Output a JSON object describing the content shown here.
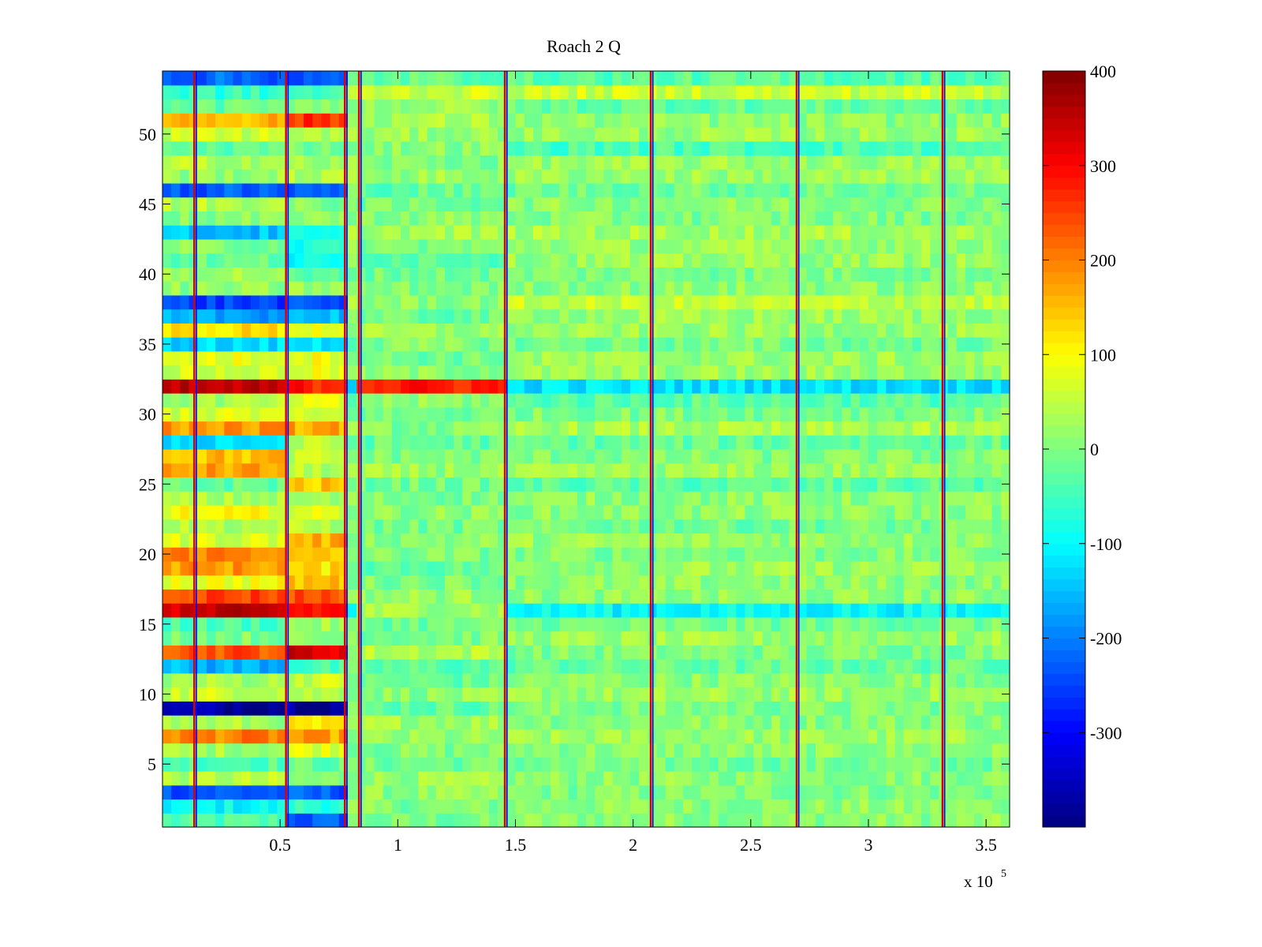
{
  "chart_data": {
    "type": "heatmap",
    "title": "Roach 2 Q",
    "xlabel": "",
    "ylabel": "",
    "x_exponent_label": {
      "base": "x 10",
      "exp": "5"
    },
    "xlim": [
      0,
      360000
    ],
    "ylim": [
      0.5,
      54.5
    ],
    "clim": [
      -400,
      400
    ],
    "colormap": "jet",
    "grid": false,
    "n_rows": 54,
    "xticks": [
      50000,
      100000,
      150000,
      200000,
      250000,
      300000,
      350000
    ],
    "xtick_labels": [
      "0.5",
      "1",
      "1.5",
      "2",
      "2.5",
      "3",
      "3.5"
    ],
    "yticks": [
      5,
      10,
      15,
      20,
      25,
      30,
      35,
      40,
      45,
      50
    ],
    "ytick_labels": [
      "5",
      "10",
      "15",
      "20",
      "25",
      "30",
      "35",
      "40",
      "45",
      "50"
    ],
    "colorbar_ticks": [
      -300,
      -200,
      -100,
      0,
      100,
      200,
      300,
      400
    ],
    "colorbar_labels": [
      "-300",
      "-200",
      "-100",
      "0",
      "100",
      "200",
      "300",
      "400"
    ],
    "segment_boundaries_x": [
      14000,
      53000,
      78000,
      84000,
      146000,
      208000,
      270000,
      332000
    ],
    "segments": [
      {
        "name": "segment-1",
        "x_range": [
          0,
          53000
        ]
      },
      {
        "name": "segment-2",
        "x_range": [
          53000,
          78000
        ]
      },
      {
        "name": "segment-3",
        "x_range": [
          84000,
          146000
        ]
      },
      {
        "name": "segment-4",
        "x_range": [
          146000,
          360000
        ]
      }
    ],
    "row_levels": [
      {
        "row": 1,
        "levels": [
          -40,
          -230,
          -10,
          10
        ]
      },
      {
        "row": 2,
        "levels": [
          -100,
          -60,
          0,
          10
        ]
      },
      {
        "row": 3,
        "levels": [
          -230,
          -230,
          10,
          0
        ]
      },
      {
        "row": 4,
        "levels": [
          40,
          0,
          20,
          10
        ]
      },
      {
        "row": 5,
        "levels": [
          -30,
          -20,
          -10,
          -10
        ]
      },
      {
        "row": 6,
        "levels": [
          30,
          80,
          0,
          10
        ]
      },
      {
        "row": 7,
        "levels": [
          200,
          170,
          10,
          20
        ]
      },
      {
        "row": 8,
        "levels": [
          30,
          100,
          30,
          10
        ]
      },
      {
        "row": 9,
        "levels": [
          -370,
          -370,
          -20,
          0
        ]
      },
      {
        "row": 10,
        "levels": [
          60,
          40,
          10,
          20
        ]
      },
      {
        "row": 11,
        "levels": [
          30,
          60,
          -20,
          10
        ]
      },
      {
        "row": 12,
        "levels": [
          -160,
          -50,
          -30,
          -20
        ]
      },
      {
        "row": 13,
        "levels": [
          240,
          330,
          40,
          0
        ]
      },
      {
        "row": 14,
        "levels": [
          0,
          0,
          0,
          20
        ]
      },
      {
        "row": 15,
        "levels": [
          -40,
          20,
          -10,
          -10
        ]
      },
      {
        "row": 16,
        "levels": [
          340,
          290,
          30,
          -100
        ]
      },
      {
        "row": 17,
        "levels": [
          250,
          240,
          20,
          10
        ]
      },
      {
        "row": 18,
        "levels": [
          90,
          150,
          0,
          10
        ]
      },
      {
        "row": 19,
        "levels": [
          180,
          120,
          -20,
          20
        ]
      },
      {
        "row": 20,
        "levels": [
          200,
          130,
          0,
          0
        ]
      },
      {
        "row": 21,
        "levels": [
          70,
          160,
          10,
          20
        ]
      },
      {
        "row": 22,
        "levels": [
          40,
          40,
          -10,
          -10
        ]
      },
      {
        "row": 23,
        "levels": [
          90,
          70,
          10,
          10
        ]
      },
      {
        "row": 24,
        "levels": [
          30,
          20,
          0,
          10
        ]
      },
      {
        "row": 25,
        "levels": [
          -20,
          140,
          -10,
          -30
        ]
      },
      {
        "row": 26,
        "levels": [
          170,
          40,
          20,
          20
        ]
      },
      {
        "row": 27,
        "levels": [
          150,
          50,
          0,
          0
        ]
      },
      {
        "row": 28,
        "levels": [
          -120,
          40,
          -20,
          -20
        ]
      },
      {
        "row": 29,
        "levels": [
          180,
          170,
          0,
          30
        ]
      },
      {
        "row": 30,
        "levels": [
          70,
          50,
          -10,
          0
        ]
      },
      {
        "row": 31,
        "levels": [
          30,
          70,
          10,
          -30
        ]
      },
      {
        "row": 32,
        "levels": [
          340,
          280,
          280,
          -120
        ]
      },
      {
        "row": 33,
        "levels": [
          60,
          80,
          10,
          20
        ]
      },
      {
        "row": 34,
        "levels": [
          80,
          90,
          -10,
          20
        ]
      },
      {
        "row": 35,
        "levels": [
          -130,
          -120,
          0,
          -10
        ]
      },
      {
        "row": 36,
        "levels": [
          120,
          90,
          20,
          20
        ]
      },
      {
        "row": 37,
        "levels": [
          -170,
          -150,
          -20,
          20
        ]
      },
      {
        "row": 38,
        "levels": [
          -250,
          -250,
          10,
          50
        ]
      },
      {
        "row": 39,
        "levels": [
          10,
          20,
          0,
          10
        ]
      },
      {
        "row": 40,
        "levels": [
          30,
          -40,
          -10,
          0
        ]
      },
      {
        "row": 41,
        "levels": [
          -20,
          -100,
          -20,
          20
        ]
      },
      {
        "row": 42,
        "levels": [
          0,
          -80,
          0,
          20
        ]
      },
      {
        "row": 43,
        "levels": [
          -150,
          -100,
          30,
          30
        ]
      },
      {
        "row": 44,
        "levels": [
          0,
          20,
          10,
          0
        ]
      },
      {
        "row": 45,
        "levels": [
          40,
          0,
          -10,
          10
        ]
      },
      {
        "row": 46,
        "levels": [
          -230,
          -230,
          -20,
          -10
        ]
      },
      {
        "row": 47,
        "levels": [
          20,
          40,
          20,
          20
        ]
      },
      {
        "row": 48,
        "levels": [
          40,
          20,
          0,
          20
        ]
      },
      {
        "row": 49,
        "levels": [
          -20,
          0,
          10,
          -40
        ]
      },
      {
        "row": 50,
        "levels": [
          60,
          40,
          20,
          20
        ]
      },
      {
        "row": 51,
        "levels": [
          160,
          260,
          30,
          10
        ]
      },
      {
        "row": 52,
        "levels": [
          -20,
          20,
          20,
          -20
        ]
      },
      {
        "row": 53,
        "levels": [
          -60,
          -50,
          60,
          60
        ]
      },
      {
        "row": 54,
        "levels": [
          -220,
          -240,
          -20,
          -30
        ]
      }
    ]
  }
}
